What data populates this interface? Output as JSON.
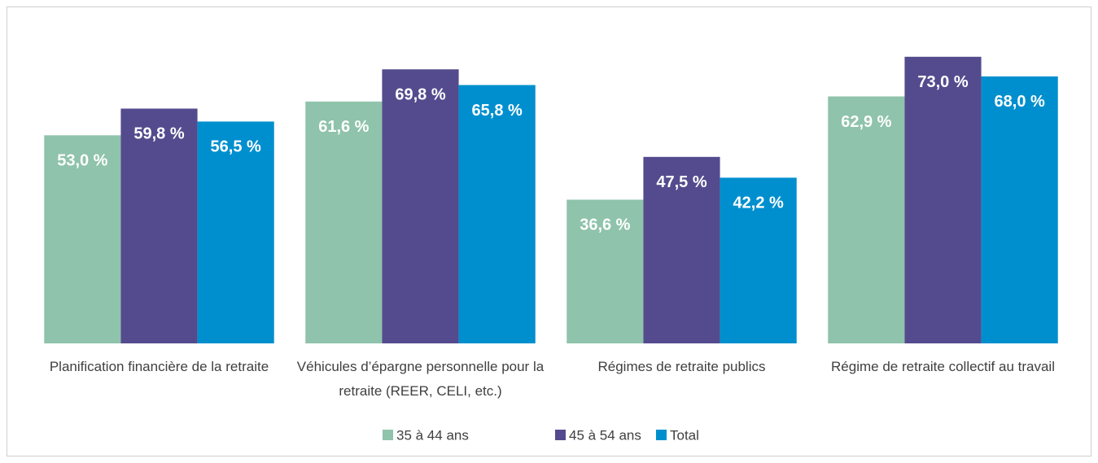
{
  "chart_data": {
    "type": "bar",
    "categories": [
      "Planification financière de la retraite",
      "Véhicules d’épargne personnelle pour la retraite (REER, CELI, etc.)",
      "Régimes de retraite publics",
      "Régime de retraite collectif au travail"
    ],
    "series": [
      {
        "name": "35 à 44 ans",
        "color": "#8fc3ab",
        "values": [
          53.0,
          61.6,
          36.6,
          62.9
        ],
        "value_labels": [
          "53,0 %",
          "61,6 %",
          "36,6 %",
          "62,9 %"
        ]
      },
      {
        "name": "45 à 54 ans",
        "color": "#544b8e",
        "values": [
          59.8,
          69.8,
          47.5,
          73.0
        ],
        "value_labels": [
          "59,8 %",
          "69,8 %",
          "47,5 %",
          "73,0 %"
        ]
      },
      {
        "name": "Total",
        "color": "#008fce",
        "values": [
          56.5,
          65.8,
          42.2,
          68.0
        ],
        "value_labels": [
          "56,5 %",
          "65,8 %",
          "42,2 %",
          "68,0 %"
        ]
      }
    ],
    "ylim": [
      0,
      80
    ],
    "legend": "bottom"
  }
}
